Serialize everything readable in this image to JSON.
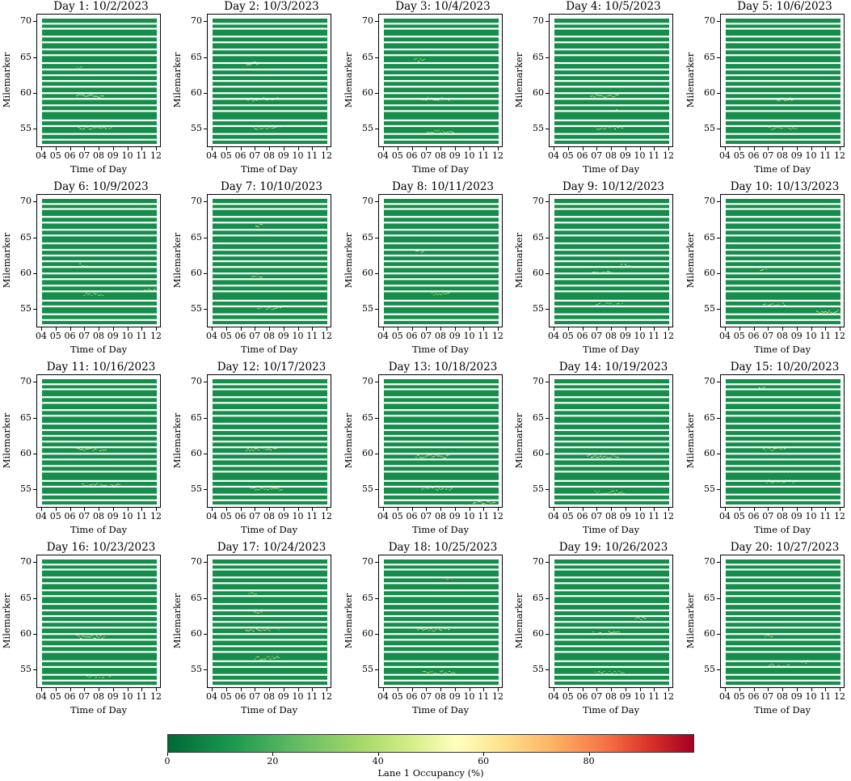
{
  "chart_data": {
    "type": "heatmap",
    "panel_common": {
      "xlabel": "Time of Day",
      "ylabel": "Milemarker",
      "x_ticks": [
        "04",
        "05",
        "06",
        "07",
        "08",
        "09",
        "10",
        "11",
        "12"
      ],
      "xlim": [
        4,
        12
      ],
      "y_ticks": [
        55,
        60,
        65,
        70
      ],
      "ylim": [
        70.5,
        53
      ],
      "y_axis_inverted": true,
      "missing_milemarker_rows": [
        53.6,
        54.4,
        55.5,
        56.3,
        57.6,
        58.4,
        59.3,
        60.1,
        61.0,
        61.8,
        62.6,
        63.4,
        64.3,
        65.4,
        66.2,
        67.2,
        68.0,
        69.1,
        69.8
      ],
      "background_occupancy_pct": 8
    },
    "colorbar": {
      "label": "Lane 1 Occupancy (%)",
      "range": [
        0,
        100
      ],
      "ticks": [
        0,
        20,
        40,
        60,
        80
      ],
      "colormap": "RdYlGn_r",
      "colors": [
        "#006837",
        "#1a9850",
        "#66bd63",
        "#a6d96a",
        "#d9ef8b",
        "#ffffbf",
        "#fee08b",
        "#fdae61",
        "#f46d43",
        "#d73027",
        "#a50026"
      ]
    },
    "panels": [
      {
        "title": "Day 1: 10/2/2023",
        "congestion": [
          {
            "t0": 6.5,
            "t1": 8.9,
            "m0": 55.5,
            "m1": 60,
            "occ": 40
          },
          {
            "t0": 6.4,
            "t1": 8.3,
            "m0": 60,
            "m1": 64,
            "occ": 50
          },
          {
            "t0": 6.3,
            "t1": 6.8,
            "m0": 64,
            "m1": 66.5,
            "occ": 35
          }
        ]
      },
      {
        "title": "Day 2: 10/3/2023",
        "congestion": [
          {
            "t0": 6.8,
            "t1": 8.8,
            "m0": 55.5,
            "m1": 59.5,
            "occ": 40
          },
          {
            "t0": 6.3,
            "t1": 8.6,
            "m0": 59.5,
            "m1": 64.5,
            "occ": 55
          },
          {
            "t0": 6.2,
            "t1": 7.4,
            "m0": 64.5,
            "m1": 66.5,
            "occ": 45
          }
        ]
      },
      {
        "title": "Day 3: 10/4/2023",
        "congestion": [
          {
            "t0": 7.0,
            "t1": 8.9,
            "m0": 55,
            "m1": 59.5,
            "occ": 40
          },
          {
            "t0": 6.4,
            "t1": 8.6,
            "m0": 59.5,
            "m1": 65,
            "occ": 60
          },
          {
            "t0": 6.1,
            "t1": 6.9,
            "m0": 65,
            "m1": 66.5,
            "occ": 45
          }
        ]
      },
      {
        "title": "Day 4: 10/5/2023",
        "congestion": [
          {
            "t0": 6.8,
            "t1": 8.8,
            "m0": 55.5,
            "m1": 60,
            "occ": 45
          },
          {
            "t0": 6.5,
            "t1": 8.5,
            "m0": 60,
            "m1": 64.5,
            "occ": 55
          },
          {
            "t0": 8.3,
            "t1": 8.7,
            "m0": 58,
            "m1": 59,
            "occ": 80
          }
        ]
      },
      {
        "title": "Day 5: 10/6/2023",
        "congestion": [
          {
            "t0": 7.0,
            "t1": 9.0,
            "m0": 55.5,
            "m1": 59.5,
            "occ": 35
          },
          {
            "t0": 7.2,
            "t1": 8.8,
            "m0": 59.5,
            "m1": 62,
            "occ": 40
          }
        ]
      },
      {
        "title": "Day 6: 10/9/2023",
        "congestion": [
          {
            "t0": 6.9,
            "t1": 8.3,
            "m0": 57.5,
            "m1": 61.5,
            "occ": 40
          },
          {
            "t0": 6.6,
            "t1": 7.2,
            "m0": 61.5,
            "m1": 63.5,
            "occ": 35
          },
          {
            "t0": 11.0,
            "t1": 11.9,
            "m0": 58,
            "m1": 59.5,
            "occ": 40
          }
        ]
      },
      {
        "title": "Day 7: 10/10/2023",
        "congestion": [
          {
            "t0": 7.0,
            "t1": 8.8,
            "m0": 55.5,
            "m1": 60,
            "occ": 40
          },
          {
            "t0": 6.7,
            "t1": 7.5,
            "m0": 60,
            "m1": 67,
            "occ": 40
          },
          {
            "t0": 7.0,
            "t1": 7.5,
            "m0": 67,
            "m1": 70,
            "occ": 50
          }
        ]
      },
      {
        "title": "Day 8: 10/11/2023",
        "congestion": [
          {
            "t0": 7.3,
            "t1": 8.6,
            "m0": 57.5,
            "m1": 61.5,
            "occ": 40
          },
          {
            "t0": 6.2,
            "t1": 6.8,
            "m0": 63.5,
            "m1": 65.5,
            "occ": 60
          }
        ]
      },
      {
        "title": "Day 9: 10/12/2023",
        "congestion": [
          {
            "t0": 6.6,
            "t1": 8.8,
            "m0": 56,
            "m1": 60.5,
            "occ": 40
          },
          {
            "t0": 6.5,
            "t1": 8.0,
            "m0": 60.5,
            "m1": 64,
            "occ": 45
          },
          {
            "t0": 8.5,
            "t1": 9.3,
            "m0": 61.5,
            "m1": 64.5,
            "occ": 55
          }
        ]
      },
      {
        "title": "Day 10: 10/13/2023",
        "congestion": [
          {
            "t0": 6.6,
            "t1": 8.3,
            "m0": 56,
            "m1": 61,
            "occ": 40
          },
          {
            "t0": 6.4,
            "t1": 6.9,
            "m0": 61,
            "m1": 63.5,
            "occ": 45
          },
          {
            "t0": 10.3,
            "t1": 11.9,
            "m0": 55,
            "m1": 61,
            "occ": 55
          }
        ]
      },
      {
        "title": "Day 11: 10/16/2023",
        "congestion": [
          {
            "t0": 6.8,
            "t1": 9.5,
            "m0": 56,
            "m1": 61,
            "occ": 40
          },
          {
            "t0": 6.4,
            "t1": 8.5,
            "m0": 61,
            "m1": 65.5,
            "occ": 45
          }
        ]
      },
      {
        "title": "Day 12: 10/17/2023",
        "congestion": [
          {
            "t0": 6.6,
            "t1": 8.9,
            "m0": 55.5,
            "m1": 61,
            "occ": 40
          },
          {
            "t0": 6.3,
            "t1": 8.5,
            "m0": 61,
            "m1": 65.5,
            "occ": 55
          }
        ]
      },
      {
        "title": "Day 13: 10/18/2023",
        "congestion": [
          {
            "t0": 6.6,
            "t1": 8.9,
            "m0": 55.5,
            "m1": 60,
            "occ": 40
          },
          {
            "t0": 6.2,
            "t1": 8.6,
            "m0": 60,
            "m1": 66,
            "occ": 55
          },
          {
            "t0": 10.2,
            "t1": 11.8,
            "m0": 53.5,
            "m1": 56,
            "occ": 45
          }
        ]
      },
      {
        "title": "Day 14: 10/19/2023",
        "congestion": [
          {
            "t0": 6.8,
            "t1": 8.9,
            "m0": 55,
            "m1": 60,
            "occ": 40
          },
          {
            "t0": 6.3,
            "t1": 8.5,
            "m0": 60,
            "m1": 65,
            "occ": 50
          }
        ]
      },
      {
        "title": "Day 15: 10/20/2023",
        "congestion": [
          {
            "t0": 6.8,
            "t1": 8.9,
            "m0": 56.5,
            "m1": 61,
            "occ": 35
          },
          {
            "t0": 6.6,
            "t1": 8.2,
            "m0": 61,
            "m1": 64,
            "occ": 40
          },
          {
            "t0": 6.3,
            "t1": 6.8,
            "m0": 69.5,
            "m1": 70.3,
            "occ": 45
          }
        ]
      },
      {
        "title": "Day 16: 10/23/2023",
        "congestion": [
          {
            "t0": 7.0,
            "t1": 8.8,
            "m0": 54.5,
            "m1": 60,
            "occ": 45
          },
          {
            "t0": 6.4,
            "t1": 8.4,
            "m0": 60,
            "m1": 65,
            "occ": 55
          }
        ]
      },
      {
        "title": "Day 17: 10/24/2023",
        "congestion": [
          {
            "t0": 6.9,
            "t1": 8.7,
            "m0": 57,
            "m1": 61,
            "occ": 45
          },
          {
            "t0": 6.3,
            "t1": 8.8,
            "m0": 61,
            "m1": 66,
            "occ": 65
          },
          {
            "t0": 6.8,
            "t1": 7.5,
            "m0": 63.5,
            "m1": 65,
            "occ": 85
          },
          {
            "t0": 6.5,
            "t1": 7.1,
            "m0": 66,
            "m1": 69,
            "occ": 40
          }
        ]
      },
      {
        "title": "Day 18: 10/25/2023",
        "congestion": [
          {
            "t0": 6.7,
            "t1": 9.0,
            "m0": 55,
            "m1": 61,
            "occ": 45
          },
          {
            "t0": 6.2,
            "t1": 8.6,
            "m0": 61,
            "m1": 66,
            "occ": 60
          },
          {
            "t0": 8.0,
            "t1": 8.8,
            "m0": 68,
            "m1": 70.3,
            "occ": 90
          }
        ]
      },
      {
        "title": "Day 19: 10/26/2023",
        "congestion": [
          {
            "t0": 6.8,
            "t1": 8.9,
            "m0": 55,
            "m1": 60.5,
            "occ": 40
          },
          {
            "t0": 6.3,
            "t1": 8.6,
            "m0": 60.5,
            "m1": 65.5,
            "occ": 55
          },
          {
            "t0": 9.6,
            "t1": 10.4,
            "m0": 62.5,
            "m1": 64.5,
            "occ": 50
          }
        ]
      },
      {
        "title": "Day 20: 10/27/2023",
        "congestion": [
          {
            "t0": 6.9,
            "t1": 8.5,
            "m0": 56,
            "m1": 60,
            "occ": 35
          },
          {
            "t0": 6.7,
            "t1": 7.3,
            "m0": 60,
            "m1": 62,
            "occ": 35
          },
          {
            "t0": 9.0,
            "t1": 9.8,
            "m0": 56.5,
            "m1": 57.5,
            "occ": 30
          }
        ]
      }
    ]
  }
}
